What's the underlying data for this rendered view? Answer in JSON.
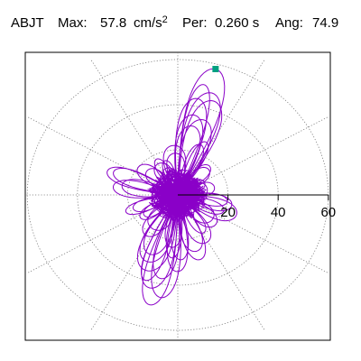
{
  "header": {
    "station": "ABJT",
    "max_label": "Max:",
    "max_value": "57.8",
    "max_unit": "cm/s",
    "max_exp": "2",
    "per_label": "Per:",
    "per_value": "0.260 s",
    "ang_label": "Ang:",
    "ang_value": "74.9"
  },
  "colors": {
    "trace": "#8a00c8",
    "marker": "#00a080",
    "grid": "#7a7a7a",
    "axis": "#000000",
    "frame": "#000000"
  },
  "chart_data": {
    "type": "polar-particle-motion",
    "title": "",
    "rlim": [
      0,
      60
    ],
    "radial_ticks": [
      20,
      40,
      60
    ],
    "radial_tick_labels": [
      "20",
      "40",
      "60"
    ],
    "angle_spokes_deg": [
      0,
      30,
      60,
      90,
      120,
      150,
      180,
      210,
      240,
      270,
      300,
      330
    ],
    "grid": true,
    "peak": {
      "amplitude": 57.8,
      "angle_deg": 74.9
    },
    "lobes": [
      {
        "angle_deg": 75,
        "amplitude": 57.8
      },
      {
        "angle_deg": 78,
        "amplitude": 50
      },
      {
        "angle_deg": 72,
        "amplitude": 44
      },
      {
        "angle_deg": 81,
        "amplitude": 36
      },
      {
        "angle_deg": 66,
        "amplitude": 26
      },
      {
        "angle_deg": 95,
        "amplitude": 22
      },
      {
        "angle_deg": 45,
        "amplitude": 18
      },
      {
        "angle_deg": 15,
        "amplitude": 15
      },
      {
        "angle_deg": 160,
        "amplitude": 30
      },
      {
        "angle_deg": 170,
        "amplitude": 26
      },
      {
        "angle_deg": 140,
        "amplitude": 20
      },
      {
        "angle_deg": 120,
        "amplitude": 18
      },
      {
        "angle_deg": 255,
        "amplitude": 50
      },
      {
        "angle_deg": 260,
        "amplitude": 46
      },
      {
        "angle_deg": 250,
        "amplitude": 40
      },
      {
        "angle_deg": 245,
        "amplitude": 32
      },
      {
        "angle_deg": 265,
        "amplitude": 28
      },
      {
        "angle_deg": 235,
        "amplitude": 22
      },
      {
        "angle_deg": 272,
        "amplitude": 34
      },
      {
        "angle_deg": 285,
        "amplitude": 30
      },
      {
        "angle_deg": 300,
        "amplitude": 24
      },
      {
        "angle_deg": 320,
        "amplitude": 20
      },
      {
        "angle_deg": 340,
        "amplitude": 25
      },
      {
        "angle_deg": 350,
        "amplitude": 22
      },
      {
        "angle_deg": 200,
        "amplitude": 22
      },
      {
        "angle_deg": 215,
        "amplitude": 18
      },
      {
        "angle_deg": 110,
        "amplitude": 16
      },
      {
        "angle_deg": 30,
        "amplitude": 12
      }
    ]
  }
}
